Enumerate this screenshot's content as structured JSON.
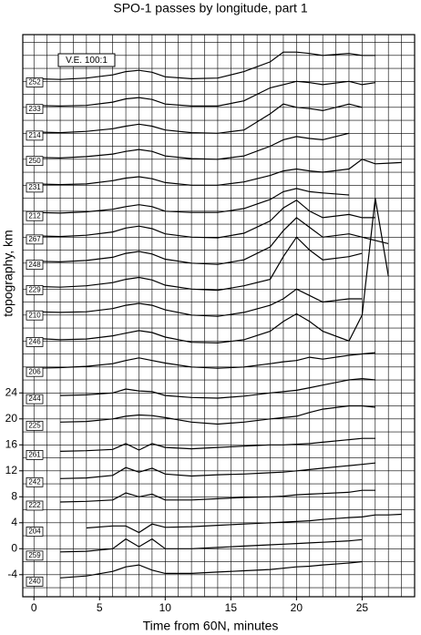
{
  "chart_data": {
    "type": "line",
    "title": "SPO-1 passes by longitude, part 1",
    "xlabel": "Time from 60N, minutes",
    "ylabel": "topography, km",
    "annotation": "V.E. 100:1",
    "color": "#000000",
    "xlim": [
      -0.85,
      29.0
    ],
    "ylim": [
      -7.4,
      79.2
    ],
    "xticks": [
      0,
      5,
      10,
      15,
      20,
      25
    ],
    "yticks": [
      -4,
      0,
      4,
      8,
      12,
      16,
      20,
      24
    ],
    "xgrid": [
      0,
      1,
      2,
      3,
      4,
      5,
      6,
      7,
      8,
      9,
      10,
      11,
      12,
      13,
      14,
      15,
      16,
      17,
      18,
      19,
      20,
      21,
      22,
      23,
      24,
      25,
      26,
      27,
      28
    ],
    "ygrid": [
      -6,
      -4,
      -2,
      0,
      2,
      4,
      6,
      8,
      10,
      12,
      14,
      16,
      18,
      20,
      22,
      24,
      26,
      28,
      30,
      32,
      34,
      36,
      38,
      40,
      42,
      44,
      46,
      48,
      50,
      52,
      54,
      56,
      58,
      60,
      62,
      64,
      66,
      68,
      70,
      72,
      74,
      76,
      78
    ],
    "x": [
      0,
      2,
      4,
      6,
      7,
      8,
      9,
      10,
      12,
      14,
      16,
      18,
      19,
      20,
      21,
      22,
      24,
      25,
      26,
      27,
      28
    ],
    "series": [
      {
        "name": "240",
        "values": [
          null,
          -4.5,
          -4.2,
          -3.5,
          -2.8,
          -2.5,
          -3.3,
          -3.8,
          -3.8,
          -3.6,
          -3.4,
          -3.2,
          -3.0,
          -2.8,
          -2.7,
          -2.5,
          -2.2,
          -2.0,
          null,
          null,
          null
        ]
      },
      {
        "name": "259",
        "values": [
          null,
          -0.5,
          -0.4,
          0,
          1.5,
          0.3,
          1.5,
          0,
          0,
          0.2,
          0.4,
          0.6,
          0.7,
          0.8,
          0.9,
          1,
          1.2,
          1.4,
          null,
          null,
          null
        ]
      },
      {
        "name": "204",
        "values": [
          null,
          null,
          3.2,
          3.5,
          3.5,
          2.5,
          3.8,
          3.3,
          3.4,
          3.6,
          3.8,
          4,
          4.1,
          4.2,
          4.3,
          4.5,
          4.8,
          4.9,
          5.2,
          5.2,
          5.3
        ]
      },
      {
        "name": "222",
        "values": [
          null,
          7.2,
          7.3,
          7.5,
          8.6,
          8,
          8.4,
          7.5,
          7.5,
          7.7,
          7.9,
          8,
          8.1,
          8.3,
          8.4,
          8.5,
          8.7,
          9,
          9,
          null,
          null
        ]
      },
      {
        "name": "242",
        "values": [
          null,
          10.8,
          10.9,
          11.3,
          12.5,
          11.8,
          12.4,
          11.5,
          11.2,
          11.4,
          11.5,
          11.7,
          11.8,
          12,
          12.2,
          12.4,
          12.8,
          13,
          13.2,
          null,
          null
        ]
      },
      {
        "name": "261",
        "values": [
          null,
          15,
          15.1,
          15.3,
          16.2,
          15.2,
          16.2,
          15.6,
          15.4,
          15.6,
          15.8,
          16,
          16,
          16.1,
          16.2,
          16.4,
          16.8,
          17,
          17,
          null,
          null
        ]
      },
      {
        "name": "225",
        "values": [
          null,
          19.5,
          19.6,
          20,
          20.4,
          20.6,
          20.5,
          20.2,
          19.5,
          19.2,
          19.5,
          20,
          20.2,
          20.4,
          21,
          21.5,
          22,
          22,
          21.8,
          null,
          null
        ]
      },
      {
        "name": "244",
        "values": [
          null,
          23.6,
          23.7,
          24,
          24.6,
          24.3,
          24.2,
          23.6,
          23.3,
          23.2,
          23.5,
          24,
          24.2,
          24.4,
          24.8,
          25.2,
          26,
          26.2,
          26,
          null,
          null
        ]
      },
      {
        "name": "206",
        "values": [
          27.8,
          27.9,
          28.1,
          28.5,
          29,
          29.4,
          29,
          28.6,
          28,
          27.8,
          28,
          28.5,
          28.8,
          29,
          29.5,
          29.2,
          29.8,
          30,
          30.2,
          null,
          null
        ]
      },
      {
        "name": "246",
        "values": [
          32.4,
          32.2,
          32.3,
          32.8,
          33.2,
          33.6,
          33.3,
          32.6,
          31.8,
          31.7,
          32.2,
          33.5,
          35,
          36.2,
          35,
          33.5,
          32,
          36,
          54,
          42,
          null
        ]
      },
      {
        "name": "210",
        "values": [
          36.5,
          36.4,
          36.5,
          37,
          37.5,
          37.8,
          37.5,
          36.8,
          36,
          35.8,
          36.4,
          37.5,
          38.5,
          40,
          39,
          38,
          38.5,
          38.5,
          null,
          null,
          null
        ]
      },
      {
        "name": "229",
        "values": [
          40.4,
          40.3,
          40.5,
          41,
          41.5,
          41.8,
          41.4,
          40.6,
          40,
          39.8,
          40.5,
          41.5,
          45,
          48,
          46,
          44.5,
          45,
          45.5,
          null,
          null,
          null
        ]
      },
      {
        "name": "248",
        "values": [
          44.3,
          44.2,
          44.4,
          44.9,
          45.5,
          45.8,
          45.4,
          44.6,
          44,
          43.8,
          44.5,
          46.5,
          49,
          51,
          49.5,
          48,
          48.5,
          48,
          47.5,
          47,
          null
        ]
      },
      {
        "name": "267",
        "values": [
          48.2,
          48.1,
          48.3,
          48.8,
          49.4,
          49.7,
          49.3,
          48.5,
          48,
          47.9,
          48.6,
          50.5,
          52.5,
          53.7,
          52,
          51,
          51.5,
          51,
          51,
          null,
          null
        ]
      },
      {
        "name": "212",
        "values": [
          51.8,
          51.7,
          51.9,
          52.3,
          52.7,
          53,
          52.7,
          52,
          51.8,
          51.8,
          52.4,
          53.8,
          55,
          55.5,
          55,
          54.8,
          54.5,
          null,
          null,
          null,
          null
        ]
      },
      {
        "name": "231",
        "values": [
          56.2,
          56.1,
          56.2,
          56.7,
          57.1,
          57.3,
          57,
          56.4,
          56,
          56,
          56.5,
          57.5,
          58.2,
          58.5,
          58.2,
          58,
          58.5,
          60,
          59.3,
          59.4,
          59.5
        ]
      },
      {
        "name": "250",
        "values": [
          60.3,
          60.2,
          60.4,
          60.8,
          61.2,
          61.5,
          61.2,
          60.5,
          60.1,
          60,
          60.5,
          62,
          63,
          63.5,
          63.2,
          63,
          64,
          null,
          null,
          null,
          null
        ]
      },
      {
        "name": "214",
        "values": [
          64.2,
          64.1,
          64.3,
          64.7,
          65.1,
          65.4,
          65.1,
          64.5,
          64.1,
          64,
          64.5,
          67,
          68.5,
          68,
          67.8,
          67.5,
          68.5,
          68,
          null,
          null,
          null
        ]
      },
      {
        "name": "233",
        "values": [
          68.3,
          68.2,
          68.3,
          68.8,
          69.3,
          69.5,
          69.2,
          68.5,
          68.2,
          68.2,
          69,
          71,
          71.5,
          72,
          71.8,
          71.5,
          72,
          71.5,
          71.8,
          null,
          null
        ]
      },
      {
        "name": "252",
        "values": [
          72.4,
          72.3,
          72.5,
          73,
          73.5,
          73.7,
          73.4,
          72.7,
          72.4,
          72.5,
          73.5,
          75,
          76.5,
          76.5,
          76.3,
          76,
          76.3,
          76,
          76,
          null,
          null
        ]
      }
    ]
  }
}
